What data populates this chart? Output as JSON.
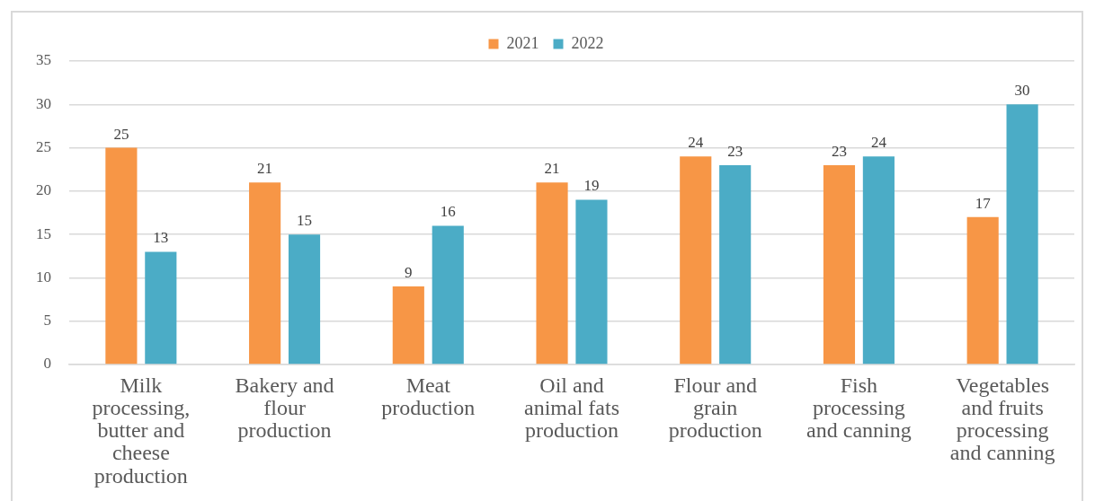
{
  "chart_data": {
    "type": "bar",
    "categories": [
      "Milk processing, butter and cheese production",
      "Bakery and flour production",
      "Meat production",
      "Oil and animal fats production",
      "Flour and grain production",
      "Fish processing and canning",
      "Vegetables and fruits processing and canning"
    ],
    "series": [
      {
        "name": "2021",
        "color": "#f79646",
        "values": [
          25,
          21,
          9,
          21,
          24,
          23,
          17
        ]
      },
      {
        "name": "2022",
        "color": "#4bacc6",
        "values": [
          13,
          15,
          16,
          19,
          23,
          24,
          30
        ]
      }
    ],
    "ylim": [
      0,
      35
    ],
    "yticks": [
      0,
      5,
      10,
      15,
      20,
      25,
      30,
      35
    ],
    "grid": "y",
    "legend": "top",
    "data_labels": true
  }
}
